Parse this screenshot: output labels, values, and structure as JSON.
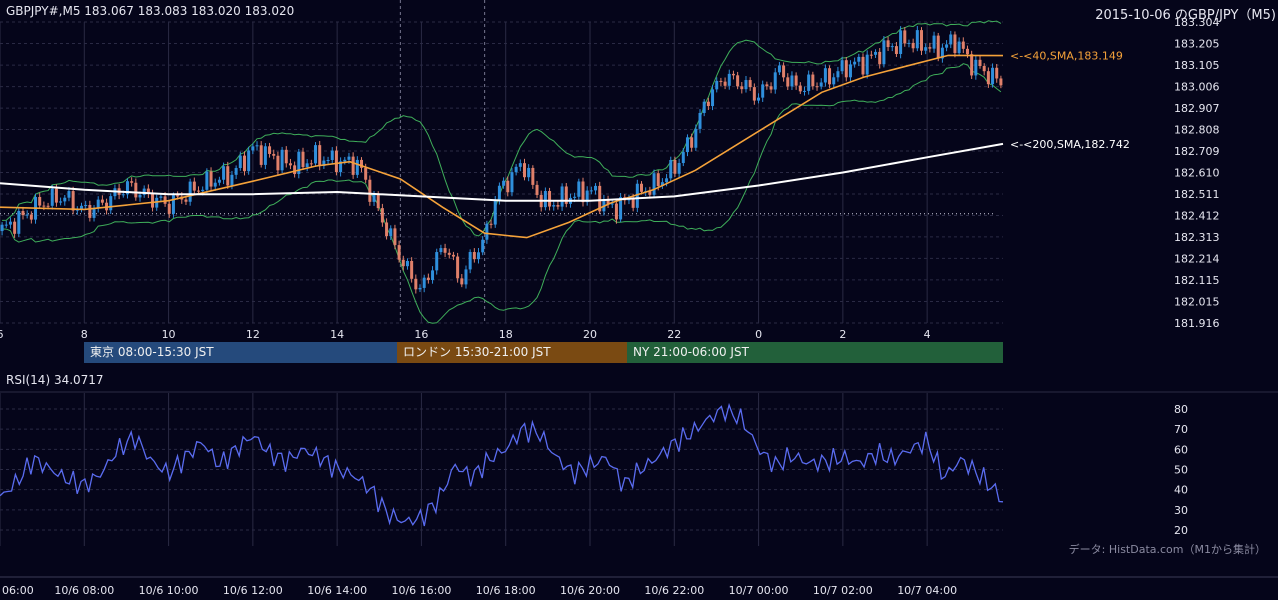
{
  "header": {
    "symbol_info": "GBPJPY#,M5 183.067 183.083 183.020 183.020",
    "title_right": "2015-10-06 のGBP/JPY（M5)"
  },
  "colors": {
    "background": "#05051a",
    "candle_up": "#2f8fdc",
    "candle_down": "#e0806a",
    "sma40": "#f5a23a",
    "sma200": "#ffffff",
    "bollinger": "#3fae5a",
    "rsi": "#5a6cf0",
    "grid": "#2a2a44",
    "session_tokyo": "#254a7c",
    "session_london": "#7a4a12",
    "session_ny": "#22603a"
  },
  "sessions": [
    {
      "label": "東京 08:00-15:30 JST"
    },
    {
      "label": "ロンドン 15:30-21:00 JST"
    },
    {
      "label": "NY 21:00-06:00 JST"
    }
  ],
  "rsi_panel": {
    "title": "RSI(14) 34.0717"
  },
  "footer": {
    "source": "データ: HistData.com（M1から集計）"
  },
  "chart_data": [
    {
      "type": "candlestick",
      "title": "GBPJPY#,M5 183.067 183.083 183.020 183.020",
      "subtitle": "2015-10-06 のGBP/JPY（M5)",
      "ylim": [
        181.916,
        183.304
      ],
      "y_ticks": [
        "183.304",
        "183.205",
        "183.105",
        "183.006",
        "182.907",
        "182.808",
        "182.709",
        "182.610",
        "182.511",
        "182.412",
        "182.313",
        "182.214",
        "182.115",
        "182.015",
        "181.916"
      ],
      "x_ticks_hour": [
        "6",
        "8",
        "10",
        "12",
        "14",
        "16",
        "18",
        "20",
        "22",
        "0",
        "2",
        "4"
      ],
      "x_ticks_date": [
        "06:00",
        "10/6 08:00",
        "10/6 10:00",
        "10/6 12:00",
        "10/6 14:00",
        "10/6 16:00",
        "10/6 18:00",
        "10/6 20:00",
        "10/6 22:00",
        "10/7 00:00",
        "10/7 02:00",
        "10/7 04:00"
      ],
      "x_range_hours": [
        6,
        29.8
      ],
      "reference_line": 182.42,
      "close_series": [
        [
          6.0,
          182.34
        ],
        [
          6.5,
          182.4
        ],
        [
          7.0,
          182.47
        ],
        [
          7.5,
          182.5
        ],
        [
          8.0,
          182.43
        ],
        [
          8.5,
          182.47
        ],
        [
          9.0,
          182.55
        ],
        [
          9.5,
          182.5
        ],
        [
          10.0,
          182.46
        ],
        [
          10.5,
          182.52
        ],
        [
          11.0,
          182.57
        ],
        [
          11.5,
          182.6
        ],
        [
          12.0,
          182.72
        ],
        [
          12.5,
          182.68
        ],
        [
          13.0,
          182.64
        ],
        [
          13.5,
          182.68
        ],
        [
          14.0,
          182.66
        ],
        [
          14.5,
          182.65
        ],
        [
          15.0,
          182.42
        ],
        [
          15.3,
          182.3
        ],
        [
          15.6,
          182.18
        ],
        [
          16.0,
          182.06
        ],
        [
          16.3,
          182.2
        ],
        [
          16.6,
          182.28
        ],
        [
          16.9,
          182.1
        ],
        [
          17.2,
          182.22
        ],
        [
          17.5,
          182.3
        ],
        [
          17.8,
          182.52
        ],
        [
          18.1,
          182.58
        ],
        [
          18.4,
          182.66
        ],
        [
          18.7,
          182.52
        ],
        [
          19.0,
          182.46
        ],
        [
          19.5,
          182.5
        ],
        [
          20.0,
          182.53
        ],
        [
          20.5,
          182.44
        ],
        [
          20.8,
          182.47
        ],
        [
          21.2,
          182.52
        ],
        [
          21.6,
          182.56
        ],
        [
          22.0,
          182.63
        ],
        [
          22.4,
          182.76
        ],
        [
          22.8,
          182.96
        ],
        [
          23.2,
          183.05
        ],
        [
          23.6,
          183.02
        ],
        [
          24.0,
          182.96
        ],
        [
          24.5,
          183.08
        ],
        [
          24.9,
          183.0
        ],
        [
          25.3,
          183.02
        ],
        [
          25.7,
          183.05
        ],
        [
          26.1,
          183.1
        ],
        [
          26.5,
          183.12
        ],
        [
          27.0,
          183.18
        ],
        [
          27.5,
          183.22
        ],
        [
          27.9,
          183.2
        ],
        [
          28.3,
          183.18
        ],
        [
          28.7,
          183.22
        ],
        [
          29.0,
          183.12
        ],
        [
          29.4,
          183.07
        ],
        [
          29.8,
          183.02
        ]
      ],
      "series": [
        {
          "name": "<-<40,SMA,183.149",
          "points": [
            [
              6.0,
              182.45
            ],
            [
              8.0,
              182.44
            ],
            [
              10.0,
              182.48
            ],
            [
              12.0,
              182.57
            ],
            [
              13.5,
              182.64
            ],
            [
              14.3,
              182.66
            ],
            [
              15.5,
              182.58
            ],
            [
              16.5,
              182.45
            ],
            [
              17.5,
              182.33
            ],
            [
              18.5,
              182.31
            ],
            [
              19.5,
              182.38
            ],
            [
              20.5,
              182.47
            ],
            [
              21.5,
              182.53
            ],
            [
              22.5,
              182.62
            ],
            [
              23.5,
              182.74
            ],
            [
              24.5,
              182.86
            ],
            [
              25.5,
              182.98
            ],
            [
              26.5,
              183.05
            ],
            [
              27.5,
              183.1
            ],
            [
              28.5,
              183.15
            ],
            [
              29.8,
              183.149
            ]
          ]
        },
        {
          "name": "<-<200,SMA,182.742",
          "points": [
            [
              6.0,
              182.56
            ],
            [
              8.0,
              182.53
            ],
            [
              10.0,
              182.51
            ],
            [
              12.0,
              182.51
            ],
            [
              14.0,
              182.52
            ],
            [
              16.0,
              182.5
            ],
            [
              18.0,
              182.48
            ],
            [
              20.0,
              182.48
            ],
            [
              22.0,
              182.5
            ],
            [
              24.0,
              182.55
            ],
            [
              26.0,
              182.61
            ],
            [
              28.0,
              182.68
            ],
            [
              29.8,
              182.742
            ]
          ]
        }
      ]
    },
    {
      "type": "line",
      "title": "RSI(14) 34.0717",
      "ylim": [
        20,
        80
      ],
      "y_ticks": [
        "80",
        "70",
        "60",
        "50",
        "40",
        "30",
        "20"
      ],
      "series": [
        {
          "name": "RSI(14) 34.0717",
          "points": [
            [
              6.0,
              36
            ],
            [
              6.4,
              44
            ],
            [
              6.8,
              55
            ],
            [
              7.2,
              50
            ],
            [
              7.6,
              45
            ],
            [
              8.0,
              42
            ],
            [
              8.4,
              48
            ],
            [
              8.8,
              60
            ],
            [
              9.2,
              66
            ],
            [
              9.6,
              54
            ],
            [
              10.0,
              48
            ],
            [
              10.4,
              56
            ],
            [
              10.8,
              64
            ],
            [
              11.2,
              52
            ],
            [
              11.6,
              60
            ],
            [
              12.0,
              67
            ],
            [
              12.4,
              58
            ],
            [
              12.8,
              54
            ],
            [
              13.2,
              60
            ],
            [
              13.6,
              56
            ],
            [
              14.0,
              50
            ],
            [
              14.4,
              47
            ],
            [
              14.8,
              40
            ],
            [
              15.2,
              28
            ],
            [
              15.6,
              24
            ],
            [
              16.0,
              26
            ],
            [
              16.4,
              35
            ],
            [
              16.8,
              52
            ],
            [
              17.2,
              46
            ],
            [
              17.6,
              55
            ],
            [
              18.0,
              60
            ],
            [
              18.4,
              70
            ],
            [
              18.8,
              68
            ],
            [
              19.2,
              56
            ],
            [
              19.6,
              48
            ],
            [
              20.0,
              52
            ],
            [
              20.4,
              56
            ],
            [
              20.8,
              42
            ],
            [
              21.2,
              50
            ],
            [
              21.6,
              56
            ],
            [
              22.0,
              63
            ],
            [
              22.4,
              68
            ],
            [
              22.8,
              75
            ],
            [
              23.2,
              80
            ],
            [
              23.6,
              75
            ],
            [
              24.0,
              60
            ],
            [
              24.4,
              52
            ],
            [
              24.8,
              57
            ],
            [
              25.2,
              53
            ],
            [
              25.6,
              54
            ],
            [
              26.0,
              56
            ],
            [
              26.4,
              53
            ],
            [
              26.8,
              58
            ],
            [
              27.2,
              55
            ],
            [
              27.6,
              60
            ],
            [
              28.0,
              64
            ],
            [
              28.4,
              46
            ],
            [
              28.8,
              55
            ],
            [
              29.2,
              48
            ],
            [
              29.6,
              40
            ],
            [
              29.8,
              34
            ]
          ]
        }
      ]
    }
  ]
}
